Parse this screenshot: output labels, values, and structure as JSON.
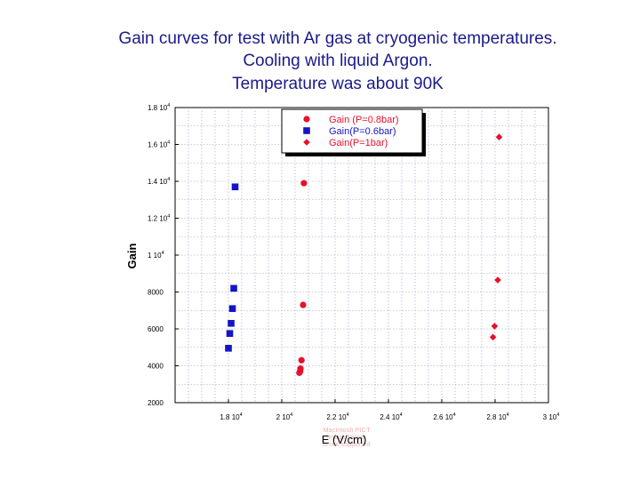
{
  "chart_data": {
    "type": "scatter",
    "title_lines": [
      "Gain curves for test with Ar gas at cryogenic temperatures.",
      "Cooling with liquid Argon.",
      "Temperature was about 90K"
    ],
    "xlabel": "E (V/cm)",
    "ylabel": "Gain",
    "xlim": [
      16000,
      30000
    ],
    "ylim": [
      2000,
      18000
    ],
    "grid": true,
    "legend_position": "top-center",
    "x_ticks": [
      {
        "mant": "1.8 10",
        "exp": "4"
      },
      {
        "mant": "2 10",
        "exp": "4"
      },
      {
        "mant": "2.2 10",
        "exp": "4"
      },
      {
        "mant": "2.4 10",
        "exp": "4"
      },
      {
        "mant": "2.6 10",
        "exp": "4"
      },
      {
        "mant": "2.8 10",
        "exp": "4"
      },
      {
        "mant": "3 10",
        "exp": "4"
      }
    ],
    "x_tick_values": [
      18000,
      20000,
      22000,
      24000,
      26000,
      28000,
      30000
    ],
    "y_ticks": [
      {
        "mant": "1.8 10",
        "exp": "4"
      },
      {
        "mant": "1.6 10",
        "exp": "4"
      },
      {
        "mant": "1.4 10",
        "exp": "4"
      },
      {
        "mant": "1.2 10",
        "exp": "4"
      },
      {
        "mant": "1 10",
        "exp": "4"
      },
      {
        "mant": "8000",
        "exp": ""
      },
      {
        "mant": "6000",
        "exp": ""
      },
      {
        "mant": "4000",
        "exp": ""
      },
      {
        "mant": "2000",
        "exp": ""
      }
    ],
    "y_tick_values": [
      18000,
      16000,
      14000,
      12000,
      10000,
      8000,
      6000,
      4000,
      2000
    ],
    "series": [
      {
        "name": "Gain (P=0.8bar)",
        "marker": "circle",
        "color": "#e8102a",
        "points": [
          [
            20830,
            13900
          ],
          [
            20800,
            7300
          ],
          [
            20740,
            4300
          ],
          [
            20700,
            3850
          ],
          [
            20690,
            3700
          ],
          [
            20660,
            3620
          ]
        ]
      },
      {
        "name": "Gain(P=0.6bar)",
        "marker": "square",
        "color": "#1414c8",
        "points": [
          [
            18250,
            13700
          ],
          [
            18200,
            8200
          ],
          [
            18150,
            7100
          ],
          [
            18100,
            6300
          ],
          [
            18050,
            5750
          ],
          [
            18000,
            4950
          ]
        ]
      },
      {
        "name": "Gain(P=1bar)",
        "marker": "diamond",
        "color": "#e8102a",
        "points": [
          [
            28150,
            16400
          ],
          [
            28100,
            8650
          ],
          [
            27980,
            6150
          ],
          [
            27920,
            5550
          ]
        ]
      }
    ]
  },
  "watermark_lines": [
    "Macintosh PICT",
    "image format",
    "is not supported"
  ]
}
